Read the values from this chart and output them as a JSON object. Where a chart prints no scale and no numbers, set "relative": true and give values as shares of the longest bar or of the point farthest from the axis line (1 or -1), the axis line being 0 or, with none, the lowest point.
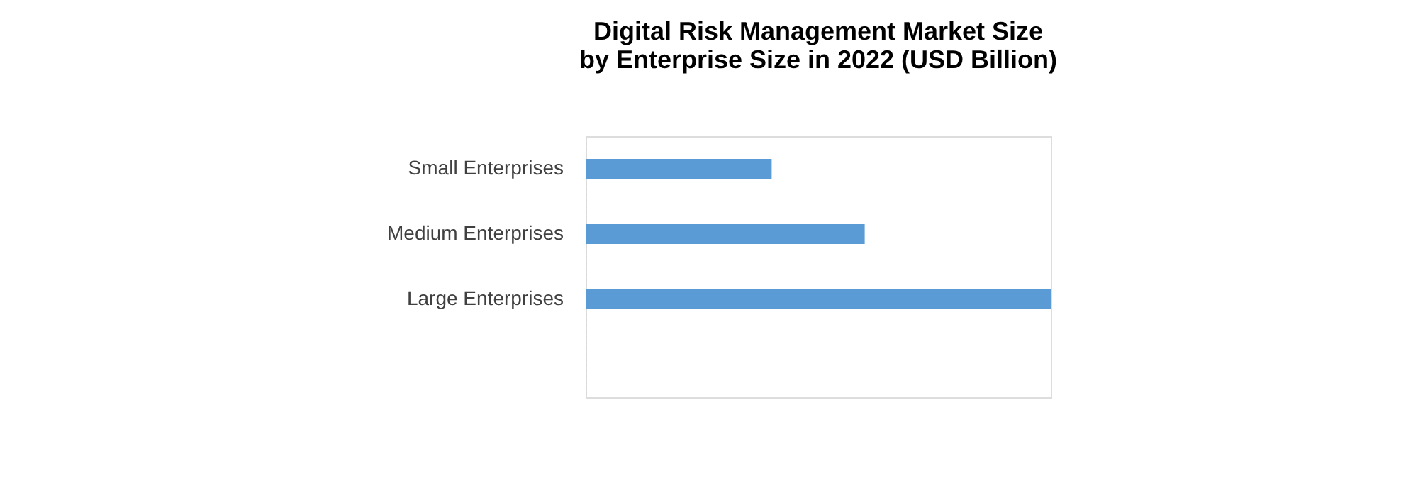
{
  "chart_data": {
    "type": "bar",
    "orientation": "horizontal",
    "relative": true,
    "title": "Digital Risk Management Market Size\nby Enterprise Size in 2022 (USD Billion)",
    "categories": [
      "Small Enterprises",
      "Medium Enterprises",
      "Large Enterprises",
      null
    ],
    "values": [
      0.4,
      0.6,
      1.0,
      null
    ],
    "color": "#5b9bd5",
    "grid": false
  }
}
